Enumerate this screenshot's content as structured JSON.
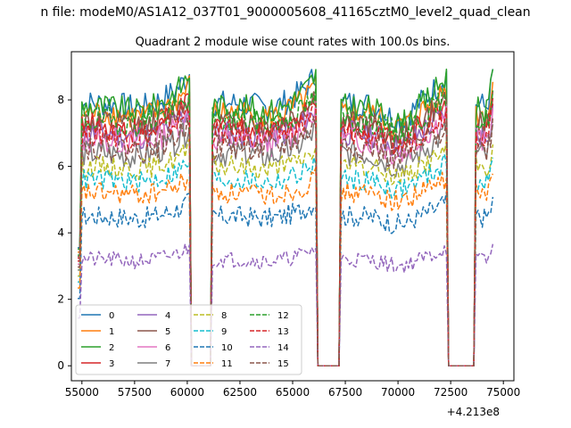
{
  "suptitle": "n file: modeM0/AS1A12_037T01_9000005608_41165cztM0_level2_quad_clean",
  "chart_data": {
    "type": "line",
    "title": "Quadrant 2 module wise count rates with 100.0s bins.",
    "xlabel": "",
    "ylabel": "",
    "x_offset_label": "+4.213e8",
    "xlim": [
      54500,
      75500
    ],
    "ylim": [
      -0.45,
      9.45
    ],
    "xticks": [
      55000,
      57500,
      60000,
      62500,
      65000,
      67500,
      70000,
      72500,
      75000
    ],
    "xtick_labels": [
      "55000",
      "57500",
      "60000",
      "62500",
      "65000",
      "67500",
      "70000",
      "72500",
      "75000"
    ],
    "yticks": [
      0,
      2,
      4,
      6,
      8
    ],
    "ytick_labels": [
      "0",
      "2",
      "4",
      "6",
      "8"
    ],
    "grid": false,
    "legend_position": "lower-left",
    "gaps": [
      [
        60100,
        61200
      ],
      [
        66100,
        67300
      ],
      [
        72300,
        73700
      ]
    ],
    "x_start": 54800,
    "x_end": 74500,
    "bin": 100,
    "series": [
      {
        "name": "0",
        "color": "#1f77b4",
        "style": "solid",
        "level": 7.9,
        "noise": 0.25,
        "peak": 1.0
      },
      {
        "name": "1",
        "color": "#ff7f0e",
        "style": "solid",
        "level": 7.6,
        "noise": 0.25,
        "peak": 0.9
      },
      {
        "name": "2",
        "color": "#2ca02c",
        "style": "solid",
        "level": 7.8,
        "noise": 0.25,
        "peak": 1.1
      },
      {
        "name": "3",
        "color": "#d62728",
        "style": "solid",
        "level": 7.2,
        "noise": 0.25,
        "peak": 0.8
      },
      {
        "name": "4",
        "color": "#9467bd",
        "style": "solid",
        "level": 7.0,
        "noise": 0.25,
        "peak": 0.8
      },
      {
        "name": "5",
        "color": "#8c564b",
        "style": "solid",
        "level": 7.3,
        "noise": 0.25,
        "peak": 0.9
      },
      {
        "name": "6",
        "color": "#e377c2",
        "style": "solid",
        "level": 6.8,
        "noise": 0.25,
        "peak": 0.9
      },
      {
        "name": "7",
        "color": "#7f7f7f",
        "style": "solid",
        "level": 6.4,
        "noise": 0.25,
        "peak": 0.8
      },
      {
        "name": "8",
        "color": "#bcbd22",
        "style": "dashed",
        "level": 6.0,
        "noise": 0.2,
        "peak": 0.6
      },
      {
        "name": "9",
        "color": "#17becf",
        "style": "dashed",
        "level": 5.6,
        "noise": 0.2,
        "peak": 0.6
      },
      {
        "name": "10",
        "color": "#1f77b4",
        "style": "dashed",
        "level": 4.5,
        "noise": 0.2,
        "peak": 0.5
      },
      {
        "name": "11",
        "color": "#ff7f0e",
        "style": "dashed",
        "level": 5.2,
        "noise": 0.2,
        "peak": 0.5
      },
      {
        "name": "12",
        "color": "#2ca02c",
        "style": "dashed",
        "level": 7.4,
        "noise": 0.25,
        "peak": 0.8
      },
      {
        "name": "13",
        "color": "#d62728",
        "style": "dashed",
        "level": 7.0,
        "noise": 0.25,
        "peak": 0.8
      },
      {
        "name": "14",
        "color": "#9467bd",
        "style": "dashed",
        "level": 3.2,
        "noise": 0.15,
        "peak": 0.4
      },
      {
        "name": "15",
        "color": "#8c564b",
        "style": "dashed",
        "level": 6.6,
        "noise": 0.25,
        "peak": 0.8
      }
    ]
  }
}
